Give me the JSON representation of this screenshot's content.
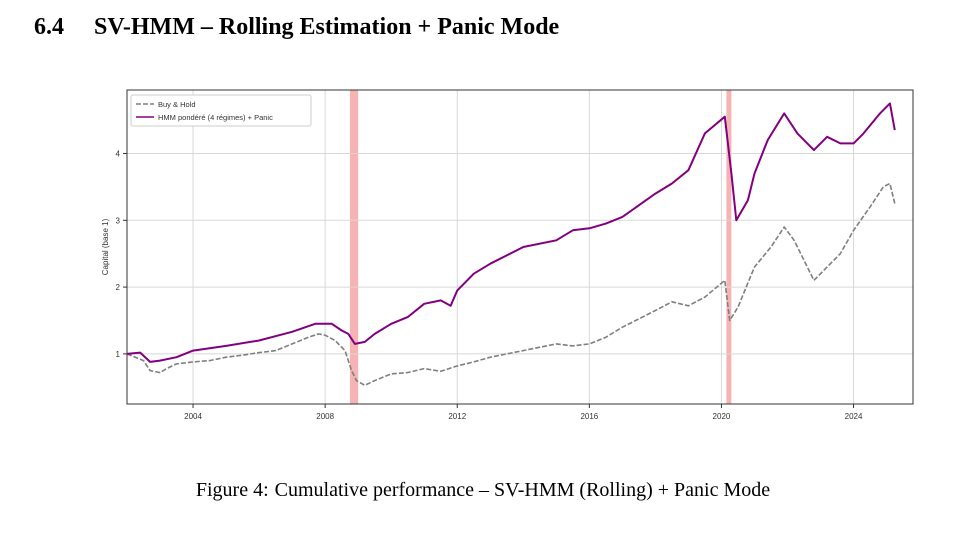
{
  "section": {
    "number": "6.4",
    "title": "SV-HMM – Rolling Estimation + Panic Mode"
  },
  "figure": {
    "label": "Figure 4:",
    "caption": "Cumulative performance – SV-HMM (Rolling) + Panic Mode"
  },
  "chart_data": {
    "type": "line",
    "title": "",
    "xlabel": "",
    "ylabel": "Capital (base 1)",
    "xlim": [
      2002.0,
      2025.8
    ],
    "ylim": [
      0.25,
      4.95
    ],
    "x_ticks": [
      "2004",
      "2008",
      "2012",
      "2016",
      "2020",
      "2024"
    ],
    "y_ticks": [
      "1",
      "2",
      "3",
      "4"
    ],
    "grid": true,
    "legend": "top-left",
    "shaded_periods": [
      [
        2008.75,
        2009.0
      ],
      [
        2020.15,
        2020.3
      ]
    ],
    "shade_color": "#f4a6a6",
    "series": [
      {
        "name": "Buy & Hold",
        "color": "#7f7f7f",
        "style": "dashed",
        "points": [
          [
            2002.0,
            1.0
          ],
          [
            2002.5,
            0.9
          ],
          [
            2002.7,
            0.75
          ],
          [
            2003.0,
            0.72
          ],
          [
            2003.2,
            0.78
          ],
          [
            2003.5,
            0.85
          ],
          [
            2004.0,
            0.88
          ],
          [
            2004.5,
            0.9
          ],
          [
            2005.0,
            0.95
          ],
          [
            2005.5,
            0.98
          ],
          [
            2006.0,
            1.02
          ],
          [
            2006.5,
            1.05
          ],
          [
            2007.0,
            1.15
          ],
          [
            2007.5,
            1.25
          ],
          [
            2007.8,
            1.3
          ],
          [
            2008.0,
            1.28
          ],
          [
            2008.3,
            1.2
          ],
          [
            2008.6,
            1.05
          ],
          [
            2008.8,
            0.75
          ],
          [
            2008.95,
            0.6
          ],
          [
            2009.2,
            0.53
          ],
          [
            2009.5,
            0.6
          ],
          [
            2010.0,
            0.7
          ],
          [
            2010.5,
            0.72
          ],
          [
            2011.0,
            0.78
          ],
          [
            2011.5,
            0.74
          ],
          [
            2012.0,
            0.82
          ],
          [
            2012.5,
            0.88
          ],
          [
            2013.0,
            0.95
          ],
          [
            2014.0,
            1.05
          ],
          [
            2015.0,
            1.15
          ],
          [
            2015.5,
            1.12
          ],
          [
            2016.0,
            1.15
          ],
          [
            2016.5,
            1.25
          ],
          [
            2017.0,
            1.4
          ],
          [
            2018.0,
            1.65
          ],
          [
            2018.5,
            1.78
          ],
          [
            2019.0,
            1.72
          ],
          [
            2019.5,
            1.85
          ],
          [
            2020.1,
            2.1
          ],
          [
            2020.25,
            1.5
          ],
          [
            2020.5,
            1.7
          ],
          [
            2021.0,
            2.3
          ],
          [
            2021.5,
            2.6
          ],
          [
            2021.9,
            2.9
          ],
          [
            2022.2,
            2.7
          ],
          [
            2022.6,
            2.3
          ],
          [
            2022.8,
            2.1
          ],
          [
            2023.2,
            2.3
          ],
          [
            2023.6,
            2.5
          ],
          [
            2024.0,
            2.85
          ],
          [
            2024.5,
            3.2
          ],
          [
            2024.9,
            3.5
          ],
          [
            2025.1,
            3.55
          ],
          [
            2025.25,
            3.25
          ]
        ]
      },
      {
        "name": "HMM pondéré (4 régimes) + Panic",
        "color": "#800080",
        "style": "solid",
        "points": [
          [
            2002.0,
            1.0
          ],
          [
            2002.4,
            1.02
          ],
          [
            2002.7,
            0.88
          ],
          [
            2003.0,
            0.9
          ],
          [
            2003.5,
            0.95
          ],
          [
            2004.0,
            1.05
          ],
          [
            2005.0,
            1.12
          ],
          [
            2006.0,
            1.2
          ],
          [
            2007.0,
            1.33
          ],
          [
            2007.7,
            1.45
          ],
          [
            2008.2,
            1.45
          ],
          [
            2008.5,
            1.35
          ],
          [
            2008.7,
            1.3
          ],
          [
            2008.9,
            1.15
          ],
          [
            2009.2,
            1.18
          ],
          [
            2009.5,
            1.3
          ],
          [
            2010.0,
            1.45
          ],
          [
            2010.5,
            1.55
          ],
          [
            2011.0,
            1.75
          ],
          [
            2011.5,
            1.8
          ],
          [
            2011.8,
            1.72
          ],
          [
            2012.0,
            1.95
          ],
          [
            2012.5,
            2.2
          ],
          [
            2013.0,
            2.35
          ],
          [
            2014.0,
            2.6
          ],
          [
            2015.0,
            2.7
          ],
          [
            2015.5,
            2.85
          ],
          [
            2016.0,
            2.88
          ],
          [
            2016.5,
            2.95
          ],
          [
            2017.0,
            3.05
          ],
          [
            2018.0,
            3.4
          ],
          [
            2018.5,
            3.55
          ],
          [
            2019.0,
            3.75
          ],
          [
            2019.5,
            4.3
          ],
          [
            2020.1,
            4.55
          ],
          [
            2020.3,
            3.7
          ],
          [
            2020.45,
            3.0
          ],
          [
            2020.8,
            3.3
          ],
          [
            2021.0,
            3.7
          ],
          [
            2021.4,
            4.2
          ],
          [
            2021.9,
            4.6
          ],
          [
            2022.3,
            4.3
          ],
          [
            2022.8,
            4.05
          ],
          [
            2023.2,
            4.25
          ],
          [
            2023.6,
            4.15
          ],
          [
            2024.0,
            4.15
          ],
          [
            2024.3,
            4.3
          ],
          [
            2024.8,
            4.6
          ],
          [
            2025.1,
            4.75
          ],
          [
            2025.25,
            4.35
          ]
        ]
      }
    ]
  }
}
